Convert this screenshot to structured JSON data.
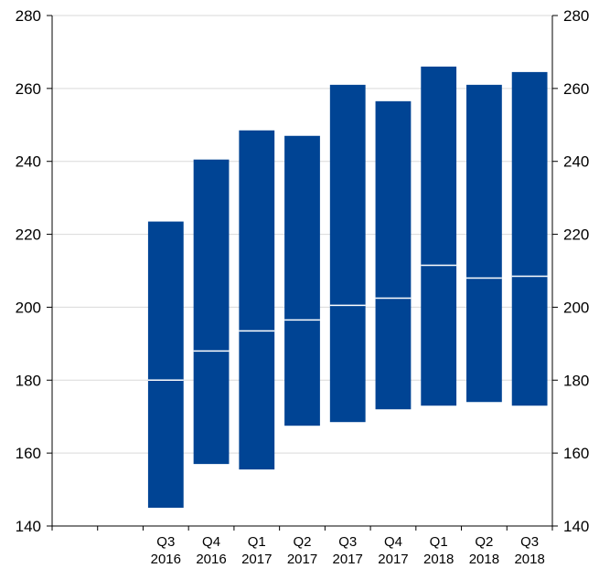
{
  "colors": {
    "bar": "#004494",
    "median": "#ffffff",
    "grid": "#d9d9d9",
    "axis": "#000000"
  },
  "chart_data": {
    "type": "bar",
    "subtype": "floating-range-with-median",
    "title": "",
    "xlabel": "",
    "ylabel": "",
    "ylim": [
      140,
      280
    ],
    "yticks": [
      140,
      160,
      180,
      200,
      220,
      240,
      260,
      280
    ],
    "grid": true,
    "legend": "none",
    "categories": [
      {
        "q": "",
        "y": ""
      },
      {
        "q": "",
        "y": ""
      },
      {
        "q": "Q3",
        "y": "2016"
      },
      {
        "q": "Q4",
        "y": "2016"
      },
      {
        "q": "Q1",
        "y": "2017"
      },
      {
        "q": "Q2",
        "y": "2017"
      },
      {
        "q": "Q3",
        "y": "2017"
      },
      {
        "q": "Q4",
        "y": "2017"
      },
      {
        "q": "Q1",
        "y": "2018"
      },
      {
        "q": "Q2",
        "y": "2018"
      },
      {
        "q": "Q3",
        "y": "2018"
      }
    ],
    "low": [
      null,
      null,
      145.0,
      157.0,
      155.5,
      167.5,
      168.5,
      172.0,
      173.0,
      174.0,
      173.0
    ],
    "high": [
      null,
      null,
      223.5,
      240.5,
      248.5,
      247.0,
      261.0,
      256.5,
      266.0,
      261.0,
      264.5
    ],
    "median": [
      null,
      null,
      180.0,
      188.0,
      193.5,
      196.5,
      200.5,
      202.5,
      211.5,
      208.0,
      208.5
    ]
  }
}
